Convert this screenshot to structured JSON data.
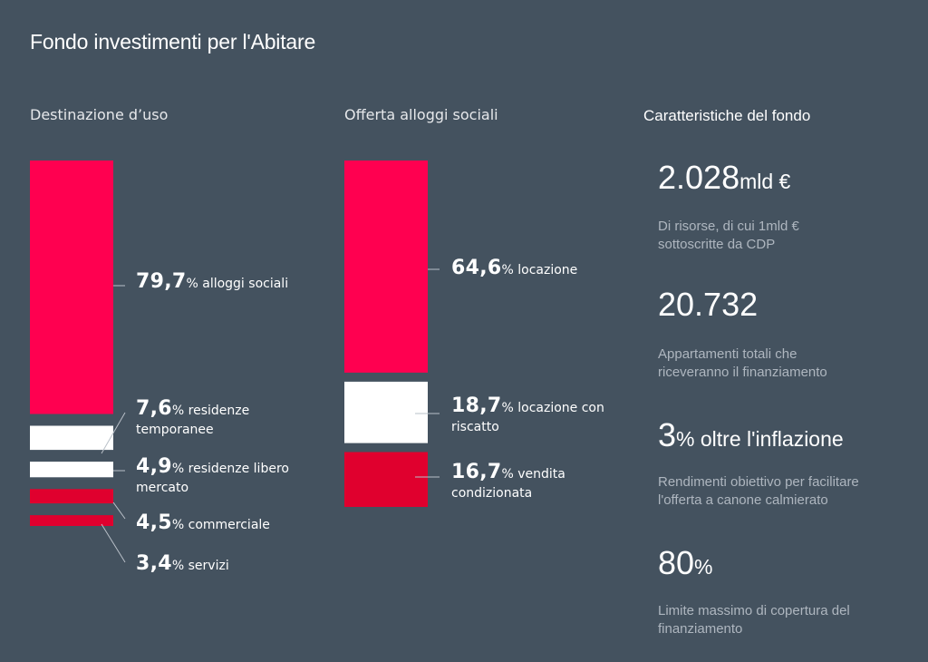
{
  "title": "Fondo investimenti per l'Abitare",
  "colors": {
    "background": "#44525f",
    "red": "#ff0050",
    "dark_red": "#e0002e",
    "white": "#ffffff"
  },
  "chart_data": [
    {
      "type": "bar",
      "stacked": true,
      "title": "Destinazione d’uso",
      "unit": "%",
      "series": [
        {
          "name": "alloggi sociali",
          "value": 79.7,
          "value_label": "79,7",
          "text": "% alloggi sociali",
          "color": "#ff0050"
        },
        {
          "name": "residenze temporanee",
          "value": 7.6,
          "value_label": "7,6",
          "text": "% residenze",
          "text2": "temporanee",
          "color": "#ffffff"
        },
        {
          "name": "residenze libero mercato",
          "value": 4.9,
          "value_label": "4,9",
          "text": "% residenze libero",
          "text2": "mercato",
          "color": "#ffffff"
        },
        {
          "name": "commerciale",
          "value": 4.5,
          "value_label": "4,5",
          "text": "% commerciale",
          "color": "#e0002e"
        },
        {
          "name": "servizi",
          "value": 3.4,
          "value_label": "3,4",
          "text": "% servizi",
          "color": "#e0002e"
        }
      ]
    },
    {
      "type": "bar",
      "stacked": true,
      "title": "Offerta alloggi sociali",
      "unit": "%",
      "series": [
        {
          "name": "locazione",
          "value": 64.6,
          "value_label": "64,6",
          "text": "% locazione",
          "color": "#ff0050"
        },
        {
          "name": "locazione con riscatto",
          "value": 18.7,
          "value_label": "18,7",
          "text": "% locazione con",
          "text2": "riscatto",
          "color": "#ffffff"
        },
        {
          "name": "vendita condizionata",
          "value": 16.7,
          "value_label": "16,7",
          "text": "% vendita",
          "text2": "condizionata",
          "color": "#e0002e"
        }
      ]
    }
  ],
  "characteristics": {
    "title": "Caratteristiche del fondo",
    "stats": [
      {
        "value": "2.028",
        "suffix": "mld €",
        "desc1": "Di risorse, di cui 1mld €",
        "desc2": "sottoscritte da CDP"
      },
      {
        "value": "20.732",
        "suffix": "",
        "desc1": "Appartamenti totali che",
        "desc2": "riceveranno il finanziamento"
      },
      {
        "value": "3",
        "suffix": "% oltre l'inflazione",
        "desc1": "Rendimenti obiettivo per facilitare",
        "desc2": "l'offerta a canone calmierato"
      },
      {
        "value": "80",
        "suffix": "%",
        "desc1": "Limite massimo di copertura del",
        "desc2": "finanziamento"
      }
    ]
  }
}
